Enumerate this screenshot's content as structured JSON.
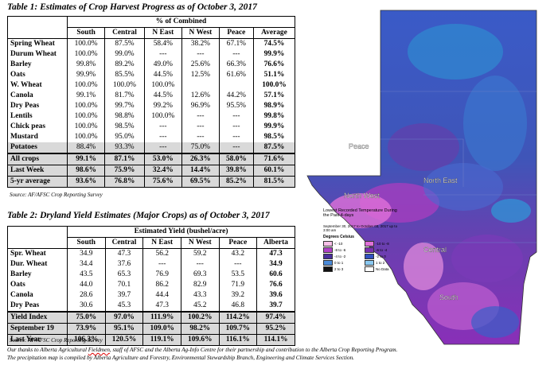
{
  "table1": {
    "title": "Table 1: Estimates of Crop Harvest Progress as of October 3, 2017",
    "group_header": "% of Combined",
    "columns": [
      "South",
      "Central",
      "N East",
      "N West",
      "Peace",
      "Average"
    ],
    "rows": [
      {
        "crop": "Spring Wheat",
        "vals": [
          "100.0%",
          "87.5%",
          "58.4%",
          "38.2%",
          "67.1%",
          "74.5%"
        ]
      },
      {
        "crop": "Durum Wheat",
        "vals": [
          "100.0%",
          "99.0%",
          "---",
          "---",
          "---",
          "99.9%"
        ]
      },
      {
        "crop": "Barley",
        "vals": [
          "99.8%",
          "89.2%",
          "49.0%",
          "25.6%",
          "66.3%",
          "76.6%"
        ]
      },
      {
        "crop": "Oats",
        "vals": [
          "99.9%",
          "85.5%",
          "44.5%",
          "12.5%",
          "61.6%",
          "51.1%"
        ]
      },
      {
        "crop": "W. Wheat",
        "vals": [
          "100.0%",
          "100.0%",
          "100.0%",
          "",
          "",
          "100.0%"
        ]
      },
      {
        "crop": "Canola",
        "vals": [
          "99.1%",
          "81.7%",
          "44.5%",
          "12.6%",
          "44.2%",
          "57.1%"
        ]
      },
      {
        "crop": "Dry Peas",
        "vals": [
          "100.0%",
          "99.7%",
          "99.2%",
          "96.9%",
          "95.5%",
          "98.9%"
        ]
      },
      {
        "crop": "Lentils",
        "vals": [
          "100.0%",
          "98.8%",
          "100.0%",
          "---",
          "---",
          "99.8%"
        ]
      },
      {
        "crop": "Chick peas",
        "vals": [
          "100.0%",
          "98.5%",
          "---",
          "---",
          "---",
          "99.9%"
        ]
      },
      {
        "crop": "Mustard",
        "vals": [
          "100.0%",
          "95.0%",
          "---",
          "---",
          "---",
          "98.5%"
        ]
      },
      {
        "crop": "Potatoes",
        "vals": [
          "88.4%",
          "93.3%",
          "---",
          "75.0%",
          "---",
          "87.5%"
        ]
      }
    ],
    "summary": [
      {
        "crop": "All crops",
        "vals": [
          "99.1%",
          "87.1%",
          "53.0%",
          "26.3%",
          "58.0%",
          "71.6%"
        ]
      },
      {
        "crop": "Last Week",
        "vals": [
          "98.6%",
          "75.9%",
          "32.4%",
          "14.4%",
          "39.8%",
          "60.1%"
        ]
      },
      {
        "crop": "5-yr average",
        "vals": [
          "93.6%",
          "76.8%",
          "75.6%",
          "69.5%",
          "85.2%",
          "81.5%"
        ]
      }
    ],
    "source": "Source: AF/AFSC Crop Reporting Survey"
  },
  "table2": {
    "title": "Table 2: Dryland Yield Estimates (Major Crops) as of October 3, 2017",
    "group_header": "Estimated Yield (bushel/acre)",
    "columns": [
      "South",
      "Central",
      "N East",
      "N West",
      "Peace",
      "Alberta"
    ],
    "rows": [
      {
        "crop": "Spr. Wheat",
        "vals": [
          "34.9",
          "47.3",
          "56.2",
          "59.2",
          "43.2",
          "47.3"
        ]
      },
      {
        "crop": "Dur. Wheat",
        "vals": [
          "34.4",
          "37.6",
          "---",
          "---",
          "---",
          "34.9"
        ]
      },
      {
        "crop": "Barley",
        "vals": [
          "43.5",
          "65.3",
          "76.9",
          "69.3",
          "53.5",
          "60.6"
        ]
      },
      {
        "crop": "Oats",
        "vals": [
          "44.0",
          "70.1",
          "86.2",
          "82.9",
          "71.9",
          "76.6"
        ]
      },
      {
        "crop": "Canola",
        "vals": [
          "28.6",
          "39.7",
          "44.4",
          "43.3",
          "39.2",
          "39.6"
        ]
      },
      {
        "crop": "Dry Peas",
        "vals": [
          "30.6",
          "45.3",
          "47.3",
          "45.2",
          "46.8",
          "39.7"
        ]
      }
    ],
    "summary": [
      {
        "crop": "Yield Index",
        "vals": [
          "75.0%",
          "97.0%",
          "111.9%",
          "100.2%",
          "114.2%",
          "97.4%"
        ]
      },
      {
        "crop": "September 19",
        "vals": [
          "73.9%",
          "95.1%",
          "109.0%",
          "98.2%",
          "109.7%",
          "95.2%"
        ]
      },
      {
        "crop": "Last Year",
        "vals": [
          "106.3%",
          "120.5%",
          "119.1%",
          "109.6%",
          "116.1%",
          "114.1%"
        ]
      }
    ],
    "source": "Source: AF/AFSC Crop Reporting Survey"
  },
  "footer": {
    "line1_pre": "Our thanks to Alberta Agricultural ",
    "line1_word": "Fieldmen",
    "line1_post": ", staff of AFSC and the Alberta Ag-Info Centre for their partnership and contribution to the Alberta Crop Reporting Program.",
    "line2": "The precipitation map is compiled by Alberta Agriculture and Forestry, Environmental Stewardship Branch, Engineering and Climate Services Section."
  },
  "map": {
    "region_labels": [
      "Peace",
      "North West",
      "North East",
      "Central",
      "South"
    ],
    "legend_title": "Lowest Recorded Temperature During the Past 4-days",
    "legend_date": "September 30, 2017 to October 03, 2017 up to 3:00 am",
    "legend_heading": "Degrees Celsius",
    "legend_items": [
      "< -10",
      "-10 to -8",
      "-8 to -6",
      "-6 to -4",
      "-4 to -2",
      "-2 to 0",
      "0 to 1",
      "1 to 2",
      "2 to 3",
      "No Data"
    ],
    "legend_colors": [
      "#f7c0e8",
      "#e070d8",
      "#b040c8",
      "#7a2fb0",
      "#4a2f9c",
      "#3050c0",
      "#4a8ad8",
      "#8ac8f0",
      "#101010",
      "#ffffff"
    ]
  }
}
